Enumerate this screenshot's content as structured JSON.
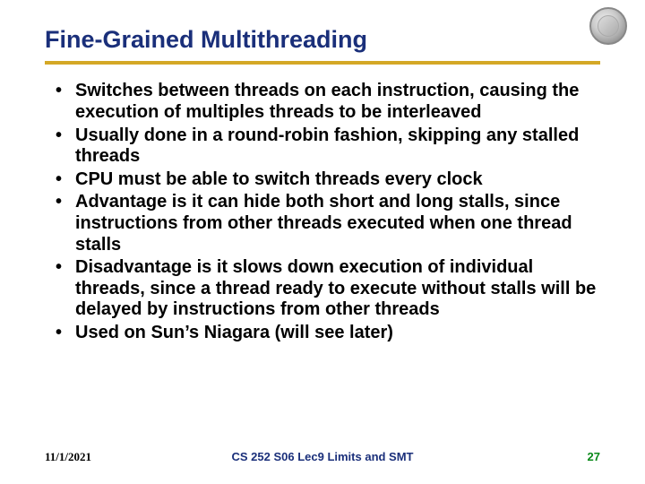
{
  "title": "Fine-Grained Multithreading",
  "title_color": "#1a2f7a",
  "rule_color": "#d4a826",
  "bullets": [
    "Switches between threads on each instruction, causing the execution of multiples threads to be interleaved",
    "Usually done in a round-robin fashion, skipping any stalled threads",
    "CPU must be able to switch threads every clock",
    "Advantage is it can hide both short and long stalls, since instructions from other threads executed when one thread stalls",
    "Disadvantage is it slows down execution of individual threads, since a thread ready to execute without stalls will be delayed by instructions from other threads",
    "Used on Sun’s Niagara (will see later)"
  ],
  "footer": {
    "date": "11/1/2021",
    "center": "CS 252 S06 Lec9 Limits and SMT",
    "page": "27"
  },
  "bullet_font_size": 20,
  "title_font_size": 27
}
